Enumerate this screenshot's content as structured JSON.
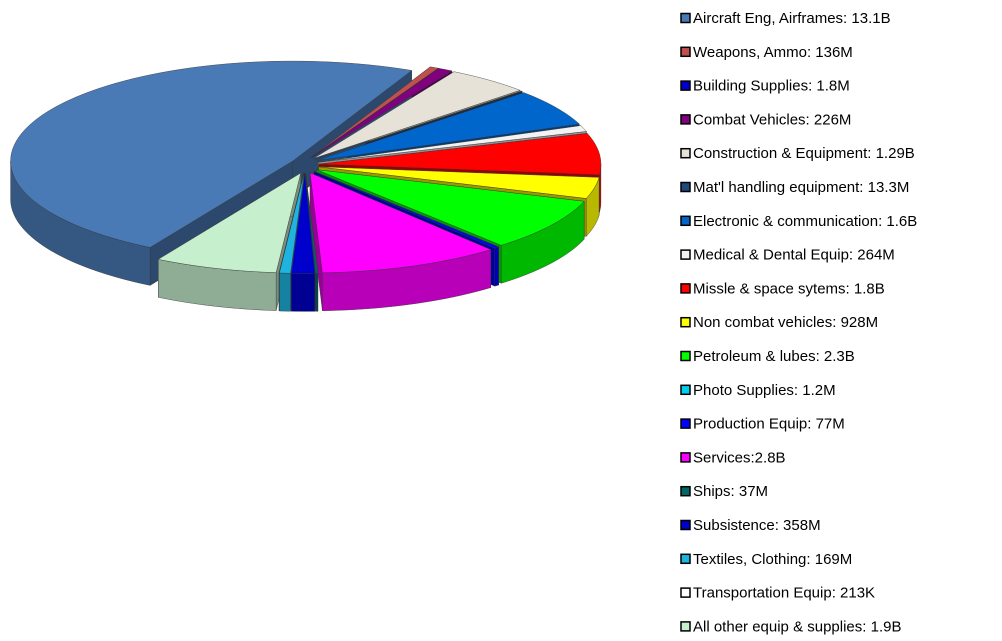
{
  "chart_data": {
    "type": "pie3d",
    "categories": [
      "Aircraft Eng, Airframes:  13.1B",
      "Weapons, Ammo: 136M",
      "Building Supplies: 1.8M",
      "Combat Vehicles: 226M",
      "Construction & Equipment: 1.29B",
      "Mat'l handling equipment: 13.3M",
      "Electronic & communication: 1.6B",
      "Medical & Dental Equip: 264M",
      "Missle & space sytems: 1.8B",
      "Non combat vehicles: 928M",
      "Petroleum & lubes: 2.3B",
      "Photo Supplies: 1.2M",
      "Production Equip: 77M",
      "Services:2.8B",
      "Ships: 37M",
      "Subsistence: 358M",
      "Textiles, Clothing: 169M",
      "Transportation Equip: 213K",
      "All other equip & supplies: 1.9B"
    ],
    "values": [
      13100000000,
      136000000,
      1800000,
      226000000,
      1290000000,
      13300000,
      1600000000,
      264000000,
      1800000000,
      928000000,
      2300000000,
      1200000,
      77000000,
      2800000000,
      37000000,
      358000000,
      169000000,
      213000,
      1900000000
    ],
    "colors": [
      "#4a7ab5",
      "#c0504d",
      "#0000cc",
      "#800080",
      "#e6e2d8",
      "#1f497d",
      "#0066cc",
      "#f2f2f2",
      "#ff0000",
      "#ffff00",
      "#00ff00",
      "#00ccee",
      "#0000ff",
      "#ff00ff",
      "#006666",
      "#0000cc",
      "#1fb4e0",
      "#ffffff",
      "#c6efce"
    ],
    "legend": "right"
  }
}
